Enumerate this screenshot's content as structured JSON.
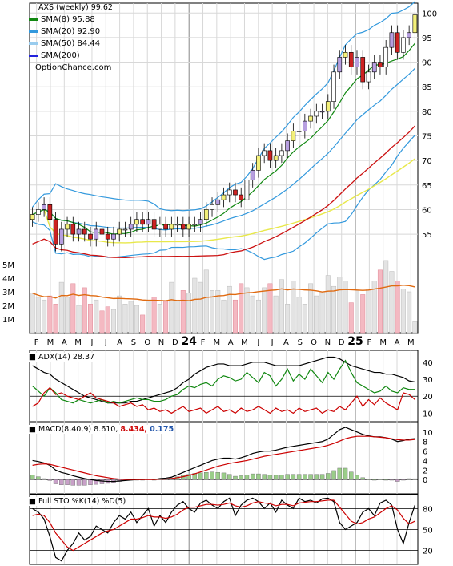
{
  "chart_data": [
    {
      "type": "candlestick",
      "title": "AXS (weekly) 99.62",
      "watermark": "OptionChance.com",
      "ylim": [
        48,
        102
      ],
      "y_ticks": [
        55,
        60,
        65,
        70,
        75,
        80,
        85,
        90,
        95,
        100
      ],
      "volume_ticks": [
        "5M",
        "4M",
        "3M",
        "2M",
        "1M"
      ],
      "volume_tick_values": [
        5,
        4,
        3,
        2,
        1
      ],
      "x_labels": [
        "F",
        "M",
        "A",
        "M",
        "J",
        "J",
        "A",
        "S",
        "O",
        "N",
        "D",
        "24",
        "F",
        "M",
        "A",
        "M",
        "J",
        "J",
        "A",
        "S",
        "O",
        "N",
        "D",
        "25",
        "F",
        "M",
        "A",
        "M"
      ],
      "year_labels": [
        "24",
        "25"
      ],
      "legend": [
        {
          "label": "SMA(8) 95.88",
          "color": "#118811"
        },
        {
          "label": "SMA(20) 92.90",
          "color": "#3399dd"
        },
        {
          "label": "SMA(50) 84.44",
          "color": "#99ccee"
        },
        {
          "label": "SMA(200)",
          "color": "#2222dd"
        }
      ],
      "close": [
        59,
        60,
        61,
        58,
        53,
        56,
        57,
        55,
        56,
        55,
        54,
        56,
        55,
        54,
        55,
        56,
        56,
        57,
        58,
        57,
        58,
        56,
        57,
        56,
        57,
        57,
        56,
        57,
        57,
        58,
        60,
        61,
        62,
        63,
        64,
        63,
        62,
        66,
        68,
        71,
        72,
        70,
        71,
        72,
        74,
        76,
        76,
        78,
        79,
        80,
        80,
        82,
        88,
        91,
        92,
        89,
        91,
        86,
        88,
        90,
        89,
        93,
        96,
        92,
        95,
        96,
        99.62
      ],
      "volume": [
        2.9,
        2.6,
        2.4,
        2.7,
        2.1,
        3.7,
        2.6,
        3.6,
        2.0,
        3.3,
        2.1,
        2.4,
        1.6,
        1.9,
        1.7,
        2.7,
        2.1,
        2.3,
        2.0,
        1.3,
        2.4,
        2.6,
        2.1,
        2.3,
        3.7,
        2.4,
        3.1,
        2.9,
        4.0,
        3.7,
        4.6,
        3.1,
        3.1,
        2.4,
        3.4,
        2.4,
        3.6,
        3.3,
        2.7,
        2.4,
        3.3,
        3.6,
        2.7,
        3.9,
        2.1,
        3.8,
        2.6,
        2.1,
        3.6,
        2.7,
        3.0,
        4.2,
        3.4,
        4.1,
        3.8,
        2.2,
        3.1,
        2.8,
        3.2,
        3.8,
        4.6,
        5.3,
        4.5,
        3.8,
        3.2,
        3.0,
        0.8
      ],
      "sma8_last": 95.88,
      "sma20_last": 92.9,
      "sma50_last": 84.44,
      "volume_avg_last": 2.9
    },
    {
      "type": "line",
      "title": "ADX(14) 28.37",
      "ylim": [
        5,
        47
      ],
      "y_ticks": [
        10,
        20,
        30,
        40
      ],
      "hlines": [
        20
      ],
      "series": [
        {
          "name": "ADX",
          "color": "#000000",
          "values": [
            38,
            36,
            34,
            33,
            30,
            28,
            26,
            24,
            22,
            20,
            19,
            18,
            17,
            16,
            16,
            16,
            16,
            17,
            17,
            18,
            19,
            20,
            21,
            22,
            23,
            25,
            28,
            30,
            33,
            35,
            37,
            38,
            39,
            39,
            38,
            38,
            38,
            39,
            40,
            40,
            40,
            39,
            38,
            38,
            38,
            38,
            38,
            39,
            40,
            41,
            42,
            43,
            43,
            42,
            40,
            38,
            37,
            36,
            35,
            34,
            34,
            33,
            33,
            32,
            31,
            29,
            28.37
          ]
        },
        {
          "name": "+DI",
          "color": "#118811",
          "values": [
            26,
            23,
            20,
            25,
            22,
            18,
            17,
            16,
            18,
            17,
            16,
            17,
            18,
            16,
            17,
            16,
            17,
            18,
            19,
            18,
            18,
            17,
            17,
            18,
            20,
            21,
            24,
            26,
            25,
            27,
            28,
            26,
            30,
            32,
            31,
            29,
            30,
            34,
            31,
            28,
            34,
            32,
            26,
            30,
            36,
            29,
            33,
            30,
            36,
            32,
            28,
            34,
            30,
            36,
            41,
            34,
            28,
            26,
            24,
            22,
            23,
            26,
            23,
            22,
            25,
            24,
            24
          ]
        },
        {
          "name": "-DI",
          "color": "#cc0000",
          "values": [
            14,
            16,
            22,
            25,
            21,
            22,
            20,
            19,
            18,
            20,
            22,
            19,
            18,
            17,
            16,
            14,
            15,
            16,
            14,
            15,
            12,
            13,
            11,
            12,
            10,
            12,
            14,
            11,
            12,
            13,
            10,
            12,
            14,
            11,
            12,
            10,
            13,
            11,
            12,
            14,
            12,
            10,
            13,
            11,
            12,
            10,
            13,
            11,
            12,
            13,
            10,
            12,
            11,
            14,
            12,
            16,
            20,
            14,
            18,
            15,
            19,
            16,
            14,
            12,
            22,
            21,
            18
          ]
        }
      ]
    },
    {
      "type": "line",
      "title": "MACD(8,40,9) 8.610,",
      "macd_value": "8.434,",
      "signal_value": "0.175",
      "ylim": [
        -3,
        12
      ],
      "y_ticks": [
        0,
        2,
        4,
        6,
        8,
        10
      ],
      "hlines": [
        0
      ],
      "series": [
        {
          "name": "MACD",
          "color": "#000000",
          "values": [
            4.0,
            3.8,
            3.5,
            3.0,
            2.0,
            1.5,
            1.2,
            0.8,
            0.5,
            0.2,
            0,
            -0.2,
            -0.3,
            -0.4,
            -0.4,
            -0.3,
            -0.2,
            -0.1,
            0,
            0,
            0.1,
            0,
            0.2,
            0.3,
            0.5,
            1.0,
            1.5,
            2.0,
            2.5,
            3.0,
            3.5,
            4.0,
            4.3,
            4.5,
            4.5,
            4.3,
            4.6,
            5.0,
            5.5,
            5.8,
            6.0,
            6.0,
            6.2,
            6.5,
            6.8,
            7.0,
            7.2,
            7.4,
            7.6,
            7.8,
            8.0,
            8.5,
            9.5,
            10.5,
            11.0,
            10.5,
            10.0,
            9.5,
            9.2,
            9.0,
            9.0,
            8.8,
            8.5,
            8.0,
            8.2,
            8.5,
            8.61
          ]
        },
        {
          "name": "Signal",
          "color": "#cc0000",
          "values": [
            3.0,
            3.2,
            3.3,
            3.2,
            2.9,
            2.6,
            2.3,
            2.0,
            1.7,
            1.4,
            1.1,
            0.8,
            0.6,
            0.4,
            0.2,
            0.1,
            0,
            0,
            0,
            0,
            0,
            0,
            0.1,
            0.1,
            0.2,
            0.4,
            0.6,
            0.9,
            1.2,
            1.6,
            2.0,
            2.4,
            2.8,
            3.1,
            3.4,
            3.6,
            3.8,
            4.0,
            4.3,
            4.6,
            4.9,
            5.1,
            5.3,
            5.5,
            5.7,
            5.9,
            6.1,
            6.3,
            6.5,
            6.7,
            6.9,
            7.2,
            7.6,
            8.1,
            8.6,
            8.9,
            9.1,
            9.1,
            9.1,
            9.0,
            8.9,
            8.8,
            8.6,
            8.4,
            8.3,
            8.3,
            8.43
          ]
        }
      ],
      "histogram": [
        1.0,
        0.6,
        0.2,
        -0.2,
        -0.9,
        -1.1,
        -1.1,
        -1.2,
        -1.2,
        -1.2,
        -1.1,
        -1.0,
        -0.9,
        -0.8,
        -0.6,
        -0.4,
        -0.2,
        -0.1,
        0,
        0,
        0.1,
        0,
        0.1,
        0.2,
        0.3,
        0.6,
        0.9,
        1.1,
        1.3,
        1.4,
        1.5,
        1.6,
        1.5,
        1.4,
        1.1,
        0.7,
        0.8,
        1.0,
        1.2,
        1.2,
        1.1,
        0.9,
        0.9,
        1.0,
        1.1,
        1.1,
        1.1,
        1.1,
        1.1,
        1.1,
        1.1,
        1.3,
        1.9,
        2.4,
        2.4,
        1.6,
        0.9,
        0.4,
        0.1,
        0,
        0.1,
        0,
        -0.1,
        -0.4,
        -0.1,
        0.2,
        0.18
      ]
    },
    {
      "type": "line",
      "title": "Full STO %K(14) %D(5)",
      "ylim": [
        0,
        100
      ],
      "y_ticks": [
        20,
        50,
        80
      ],
      "hlines": [
        20,
        50,
        80
      ],
      "series": [
        {
          "name": "%K",
          "color": "#000000",
          "values": [
            80,
            75,
            65,
            40,
            10,
            5,
            20,
            30,
            45,
            35,
            40,
            55,
            50,
            45,
            60,
            70,
            65,
            75,
            60,
            70,
            80,
            55,
            70,
            60,
            75,
            85,
            90,
            80,
            75,
            88,
            92,
            85,
            80,
            90,
            95,
            70,
            85,
            92,
            95,
            90,
            80,
            88,
            75,
            92,
            85,
            80,
            95,
            90,
            92,
            88,
            94,
            95,
            90,
            60,
            50,
            55,
            60,
            75,
            80,
            70,
            88,
            92,
            85,
            50,
            30,
            60,
            85
          ]
        },
        {
          "name": "%D",
          "color": "#cc0000",
          "values": [
            70,
            72,
            70,
            60,
            45,
            35,
            25,
            20,
            25,
            30,
            35,
            40,
            45,
            48,
            50,
            55,
            60,
            65,
            65,
            67,
            70,
            68,
            68,
            66,
            68,
            72,
            78,
            82,
            82,
            84,
            86,
            86,
            85,
            86,
            88,
            84,
            82,
            84,
            88,
            90,
            88,
            87,
            84,
            86,
            86,
            84,
            88,
            89,
            90,
            90,
            91,
            92,
            92,
            82,
            72,
            62,
            58,
            60,
            65,
            68,
            74,
            80,
            84,
            78,
            66,
            58,
            62
          ]
        }
      ]
    }
  ]
}
